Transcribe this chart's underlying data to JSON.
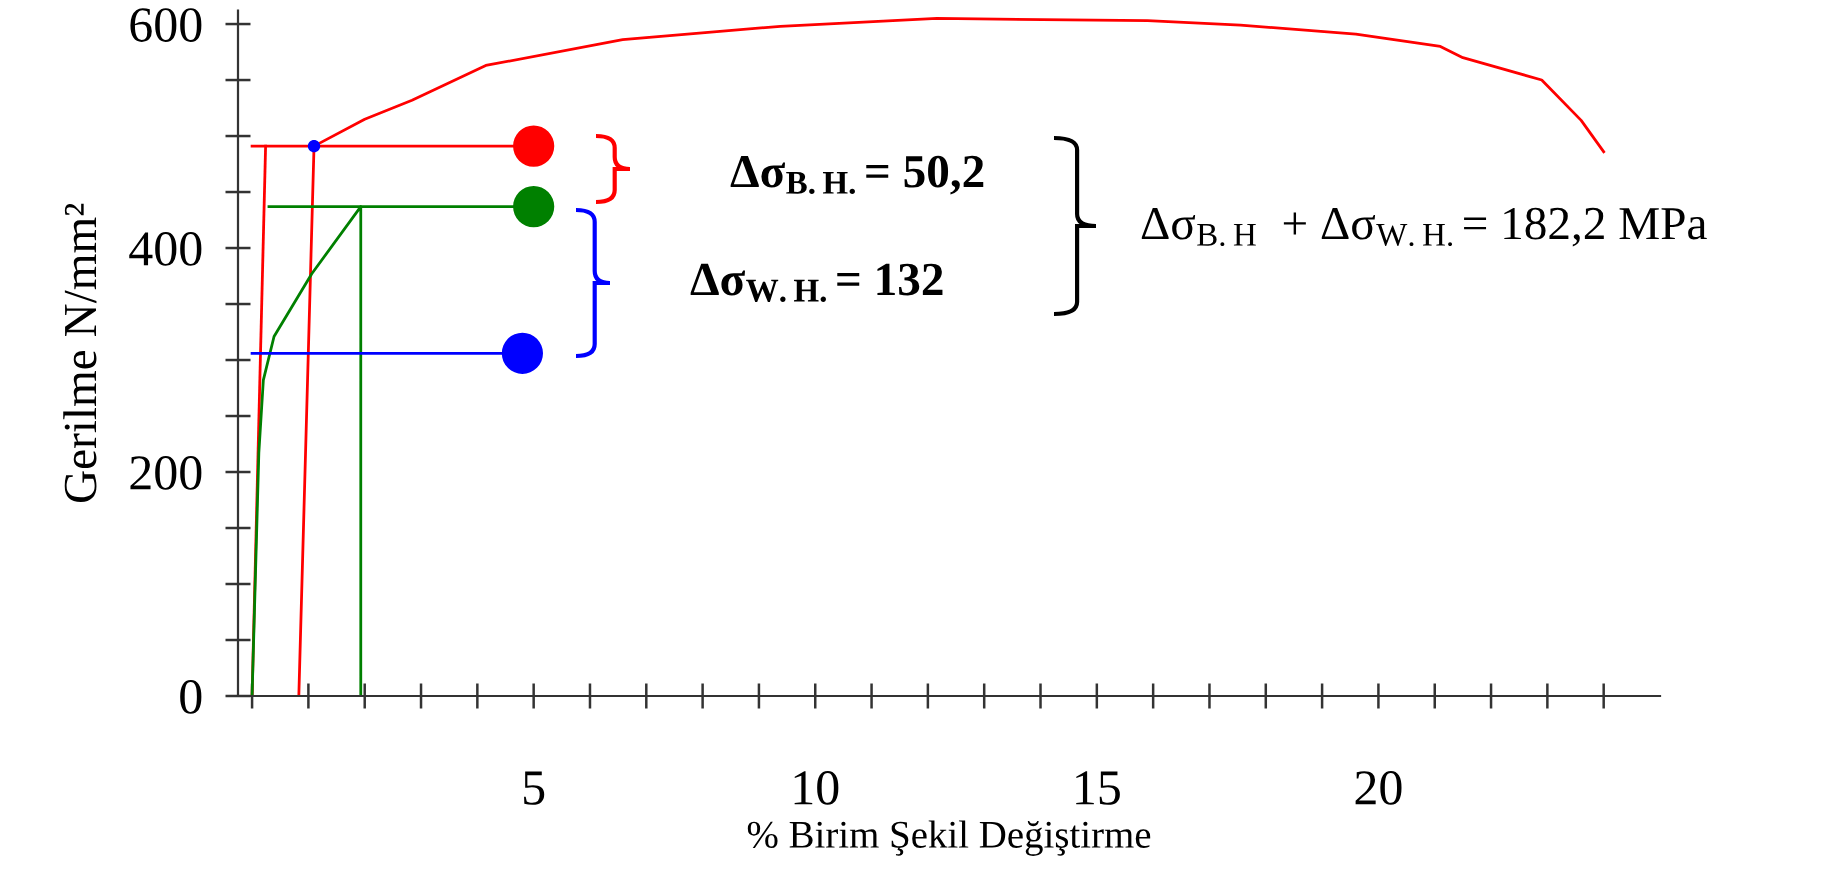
{
  "chart_data": {
    "type": "line",
    "xlabel": "% Birim Şekil Değiştirme",
    "ylabel": "Gerilme N/mm²",
    "xlim": [
      -0.25,
      25
    ],
    "ylim": [
      0,
      612
    ],
    "xticks": [
      {
        "value": 0,
        "label": null
      },
      {
        "value": 1,
        "label": null
      },
      {
        "value": 2,
        "label": null
      },
      {
        "value": 3,
        "label": null
      },
      {
        "value": 4,
        "label": null
      },
      5,
      {
        "value": 6,
        "label": null
      },
      {
        "value": 7,
        "label": null
      },
      {
        "value": 8,
        "label": null
      },
      {
        "value": 9,
        "label": null
      },
      10,
      {
        "value": 11,
        "label": null
      },
      {
        "value": 12,
        "label": null
      },
      {
        "value": 13,
        "label": null
      },
      {
        "value": 14,
        "label": null
      },
      15,
      {
        "value": 16,
        "label": null
      },
      {
        "value": 17,
        "label": null
      },
      {
        "value": 18,
        "label": null
      },
      {
        "value": 19,
        "label": null
      },
      20,
      {
        "value": 21,
        "label": null
      },
      {
        "value": 22,
        "label": null
      },
      {
        "value": 23,
        "label": null
      },
      {
        "value": 24,
        "label": null
      }
    ],
    "yticks": [
      0,
      {
        "value": 50,
        "label": null
      },
      {
        "value": 100,
        "label": null
      },
      {
        "value": 150,
        "label": null
      },
      200,
      {
        "value": 250,
        "label": null
      },
      {
        "value": 300,
        "label": null
      },
      {
        "value": 350,
        "label": null
      },
      400,
      {
        "value": 450,
        "label": null
      },
      {
        "value": 500,
        "label": null
      },
      {
        "value": 550,
        "label": null
      },
      600
    ],
    "grid": false,
    "legend": false,
    "marker": "none",
    "line_style": "solid",
    "series": [
      {
        "color": "#ff0000",
        "x": [
          0.83,
          1.1,
          2.0,
          2.84,
          4.15,
          6.58,
          9.38,
          12.16,
          15.9,
          17.55,
          19.6,
          21.1,
          21.5,
          22.9,
          23.6,
          24.0
        ],
        "values": [
          0,
          491,
          515,
          532,
          563,
          586,
          598,
          605,
          603,
          599,
          591,
          580,
          570,
          550,
          514,
          486
        ]
      },
      {
        "color": "#ff0000",
        "x": [
          0,
          0.24
        ],
        "values": [
          0,
          491
        ]
      },
      {
        "color": "#ff0000",
        "x": [
          0,
          5
        ],
        "values": [
          491,
          491
        ]
      },
      {
        "color": "#008000",
        "x": [
          0,
          0.12,
          0.2,
          0.39,
          1.06,
          1.93,
          1.93
        ],
        "values": [
          0,
          217,
          282,
          321,
          377,
          437,
          0
        ]
      },
      {
        "color": "#008000",
        "x": [
          0.3,
          5
        ],
        "values": [
          437,
          437
        ]
      },
      {
        "color": "#0000ff",
        "x": [
          0,
          4.8
        ],
        "values": [
          306,
          306
        ]
      },
      {
        "type": "scatter",
        "marker": "circle",
        "x": [
          5,
          5,
          4.8
        ],
        "values": [
          491,
          437,
          306
        ],
        "colors": [
          "#ff0000",
          "#008000",
          "#0000ff"
        ]
      },
      {
        "type": "scatter",
        "marker": "circle",
        "x": [
          1.1
        ],
        "values": [
          491
        ],
        "colors": [
          "#0000ff"
        ]
      }
    ],
    "annotations": [
      "Δσ$_{B.H.}$= 50,2",
      "Δσ$_{W.H.}$= 132",
      "Δσ$_{B.H}$  + Δσ$_{W.H.}$= 182,2 MPa"
    ]
  }
}
